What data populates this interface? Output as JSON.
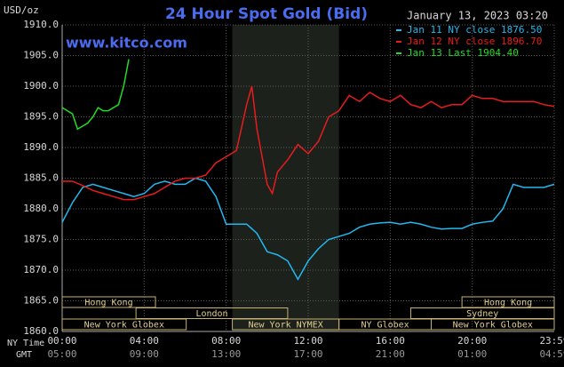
{
  "chart_data": {
    "type": "line",
    "title": "24 Hour Spot Gold (Bid)",
    "timestamp": "January 13, 2023 03:20",
    "y_label": "USD/oz",
    "watermark": "www.kitco.com",
    "ylim": [
      1860,
      1910
    ],
    "yticks": [
      {
        "value": 1860,
        "label": "1860.0"
      },
      {
        "value": 1865,
        "label": "1865.0"
      },
      {
        "value": 1870,
        "label": "1870.0"
      },
      {
        "value": 1875,
        "label": "1875.0"
      },
      {
        "value": 1880,
        "label": "1880.0"
      },
      {
        "value": 1885,
        "label": "1885.0"
      },
      {
        "value": 1890,
        "label": "1890.0"
      },
      {
        "value": 1895,
        "label": "1895.0"
      },
      {
        "value": 1900,
        "label": "1900.0"
      },
      {
        "value": 1905,
        "label": "1905.0"
      },
      {
        "value": 1910,
        "label": "1910.0"
      }
    ],
    "xlim": [
      0,
      24
    ],
    "x_label": "NY Time",
    "x2_label": "GMT",
    "xticks": [
      {
        "value": 0,
        "label": "00:00"
      },
      {
        "value": 4,
        "label": "04:00"
      },
      {
        "value": 8,
        "label": "08:00"
      },
      {
        "value": 12,
        "label": "12:00"
      },
      {
        "value": 16,
        "label": "16:00"
      },
      {
        "value": 20,
        "label": "20:00"
      },
      {
        "value": 24,
        "label": "23:59"
      }
    ],
    "x2ticks": [
      {
        "value": 0,
        "label": "05:00"
      },
      {
        "value": 4,
        "label": "09:00"
      },
      {
        "value": 8,
        "label": "13:00"
      },
      {
        "value": 12,
        "label": "17:00"
      },
      {
        "value": 16,
        "label": "21:00"
      },
      {
        "value": 20,
        "label": "01:00"
      },
      {
        "value": 24,
        "label": "04:59"
      }
    ],
    "grid": true,
    "sessions": [
      {
        "label": "Hong Kong",
        "start": 0,
        "end": 4.55
      },
      {
        "label": "Hong Kong",
        "start": 19.5,
        "end": 24
      },
      {
        "label": "London",
        "start": 3.6,
        "end": 11
      },
      {
        "label": "Sydney",
        "start": 17,
        "end": 24
      },
      {
        "label": "New York Globex",
        "start": 0,
        "end": 6.05
      },
      {
        "label": "New York NYMEX",
        "start": 8.3,
        "end": 13.5
      },
      {
        "label": "NY Globex",
        "start": 13.5,
        "end": 18
      },
      {
        "label": "New York Globex",
        "start": 18,
        "end": 24
      }
    ],
    "series": [
      {
        "name": "Jan 11 NY close 1876.50",
        "color": "#22b8f0",
        "x": [
          0,
          0.5,
          1,
          1.5,
          2,
          2.5,
          3,
          3.5,
          4,
          4.5,
          5,
          5.5,
          6,
          6.5,
          7,
          7.5,
          8,
          8.5,
          9,
          9.5,
          10,
          10.5,
          11,
          11.5,
          12,
          12.5,
          13,
          13.5,
          14,
          14.5,
          15,
          15.5,
          16,
          16.5,
          17,
          17.5,
          18,
          18.5,
          19,
          19.5,
          20,
          20.5,
          21,
          21.5,
          22,
          22.5,
          23,
          23.5,
          24
        ],
        "values": [
          1877.8,
          1881,
          1883.5,
          1884,
          1883.5,
          1883,
          1882.5,
          1882,
          1882.5,
          1884,
          1884.5,
          1884,
          1884,
          1885,
          1884.5,
          1882,
          1877.5,
          1877.5,
          1877.5,
          1876,
          1873,
          1872.5,
          1871.5,
          1868.5,
          1871.5,
          1873.5,
          1875,
          1875.5,
          1876,
          1877,
          1877.5,
          1877.7,
          1877.8,
          1877.5,
          1877.8,
          1877.5,
          1877,
          1876.7,
          1876.8,
          1876.8,
          1877.5,
          1877.8,
          1878,
          1880,
          1884,
          1883.5,
          1883.5,
          1883.5,
          1884
        ]
      },
      {
        "name": "Jan 12 NY close 1896.70",
        "color": "#e81c1c",
        "x": [
          0,
          0.5,
          1,
          1.5,
          2,
          2.5,
          3,
          3.5,
          4,
          4.5,
          5,
          5.5,
          6,
          6.5,
          7,
          7.5,
          8,
          8.5,
          9,
          9.25,
          9.5,
          10,
          10.25,
          10.5,
          11,
          11.5,
          12,
          12.5,
          13,
          13.5,
          14,
          14.5,
          15,
          15.5,
          16,
          16.5,
          17,
          17.5,
          18,
          18.5,
          19,
          19.5,
          20,
          20.5,
          21,
          21.5,
          22,
          22.5,
          23,
          23.5,
          24
        ],
        "values": [
          1884.5,
          1884.5,
          1883.8,
          1883,
          1882.5,
          1882,
          1881.5,
          1881.5,
          1882,
          1882.5,
          1883.5,
          1884.5,
          1885,
          1885,
          1885.5,
          1887.5,
          1888.5,
          1889.5,
          1897,
          1900,
          1893,
          1884,
          1882.5,
          1886,
          1888,
          1890.5,
          1889,
          1891,
          1895,
          1896,
          1898.5,
          1897.5,
          1899,
          1898,
          1897.5,
          1898.5,
          1897,
          1896.5,
          1897.5,
          1896.5,
          1897,
          1897,
          1898.5,
          1898,
          1898,
          1897.5,
          1897.5,
          1897.5,
          1897.5,
          1897,
          1896.7
        ]
      },
      {
        "name": "Jan 13 Last 1904.40",
        "color": "#22dd22",
        "x": [
          0,
          0.25,
          0.5,
          0.75,
          1,
          1.25,
          1.5,
          1.75,
          2,
          2.25,
          2.5,
          2.75,
          3,
          3.25
        ],
        "values": [
          1896.5,
          1896,
          1895.5,
          1893,
          1893.5,
          1894,
          1895,
          1896.5,
          1896,
          1896,
          1896.5,
          1897,
          1900,
          1904.4
        ]
      }
    ]
  }
}
